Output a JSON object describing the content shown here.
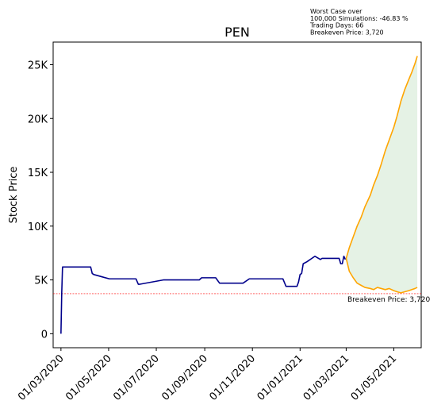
{
  "chart_data": {
    "type": "line",
    "title": "PEN",
    "xlabel": "",
    "ylabel": "Stock Price",
    "x_tick_labels": [
      "01/03/2020",
      "01/05/2020",
      "01/07/2020",
      "01/09/2020",
      "01/11/2020",
      "01/01/2021",
      "01/03/2021",
      "01/05/2021"
    ],
    "y_tick_labels": [
      "0",
      "5K",
      "10K",
      "15K",
      "20K",
      "25K"
    ],
    "y_tick_values": [
      0,
      5000,
      10000,
      15000,
      20000,
      25000
    ],
    "ylim": [
      -1300,
      27100
    ],
    "xlim": [
      "2020-02-20",
      "2021-06-05"
    ],
    "grid": false,
    "colors": {
      "history": "#00008b",
      "best_case": "#ffa500",
      "worst_case": "#ffa500",
      "fill": "#e5f2e5",
      "breakeven": "#ff0000"
    },
    "history": {
      "x": [
        "2020-03-01",
        "2020-03-02",
        "2020-03-03",
        "2020-03-06",
        "2020-03-20",
        "2020-04-01",
        "2020-04-08",
        "2020-04-10",
        "2020-04-12",
        "2020-05-02",
        "2020-05-20",
        "2020-06-05",
        "2020-06-08",
        "2020-06-10",
        "2020-07-10",
        "2020-08-01",
        "2020-08-10",
        "2020-08-25",
        "2020-08-28",
        "2020-09-10",
        "2020-09-15",
        "2020-09-20",
        "2020-10-01",
        "2020-10-20",
        "2020-10-28",
        "2020-10-31",
        "2020-11-20",
        "2020-12-05",
        "2020-12-08",
        "2020-12-10",
        "2020-12-14",
        "2020-12-18",
        "2020-12-22",
        "2020-12-26",
        "2020-12-28",
        "2020-12-30",
        "2021-01-01",
        "2021-01-03",
        "2021-01-05",
        "2021-01-10",
        "2021-01-20",
        "2021-01-27",
        "2021-01-29",
        "2021-02-10",
        "2021-02-20",
        "2021-02-22",
        "2021-02-24",
        "2021-02-26",
        "2021-02-28"
      ],
      "y": [
        0,
        3800,
        6200,
        6200,
        6200,
        6200,
        6200,
        5600,
        5500,
        5100,
        5100,
        5100,
        4600,
        4600,
        5000,
        5000,
        5000,
        5000,
        5200,
        5200,
        5200,
        4700,
        4700,
        4700,
        5100,
        5100,
        5100,
        5100,
        5100,
        5100,
        4400,
        4400,
        4400,
        4400,
        4400,
        4800,
        5500,
        5600,
        6500,
        6700,
        7200,
        6900,
        7000,
        7000,
        7000,
        6500,
        6500,
        7200,
        6900
      ]
    },
    "best_case": {
      "x": [
        "2021-03-01",
        "2021-03-05",
        "2021-03-10",
        "2021-03-15",
        "2021-03-20",
        "2021-03-25",
        "2021-04-01",
        "2021-04-05",
        "2021-04-10",
        "2021-04-15",
        "2021-04-20",
        "2021-04-25",
        "2021-05-01",
        "2021-05-05",
        "2021-05-10",
        "2021-05-15",
        "2021-05-20",
        "2021-05-24",
        "2021-05-28",
        "2021-05-31"
      ],
      "y": [
        7000,
        8000,
        9000,
        10000,
        10800,
        11800,
        12900,
        13800,
        14700,
        15800,
        17000,
        18000,
        19200,
        20200,
        21600,
        22700,
        23600,
        24300,
        25100,
        25800
      ]
    },
    "worst_case": {
      "x": [
        "2021-03-01",
        "2021-03-05",
        "2021-03-10",
        "2021-03-15",
        "2021-03-20",
        "2021-03-25",
        "2021-04-01",
        "2021-04-05",
        "2021-04-10",
        "2021-04-15",
        "2021-04-20",
        "2021-04-25",
        "2021-05-01",
        "2021-05-05",
        "2021-05-10",
        "2021-05-15",
        "2021-05-20",
        "2021-05-24",
        "2021-05-28",
        "2021-05-31"
      ],
      "y": [
        7000,
        5800,
        5200,
        4700,
        4500,
        4300,
        4200,
        4100,
        4300,
        4200,
        4100,
        4200,
        4000,
        3900,
        3800,
        3900,
        4000,
        4100,
        4200,
        4300
      ]
    },
    "breakeven": {
      "value": 3720,
      "label": "Breakeven Price: 3,720"
    },
    "annotation": [
      "Worst Case over",
      "100,000 Simulations: -46.83 %",
      "Trading Days: 66",
      "Breakeven Price: 3,720"
    ]
  }
}
